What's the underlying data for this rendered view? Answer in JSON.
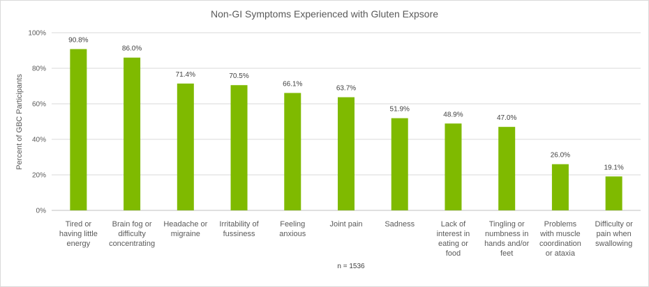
{
  "chart_data": {
    "type": "bar",
    "title": "Non-GI Symptoms  Experienced with Gluten Expsore",
    "ylabel": "Percent of GBC Participants",
    "xlabel": "",
    "ylim": [
      0,
      100
    ],
    "yticks": [
      "0%",
      "20%",
      "40%",
      "60%",
      "80%",
      "100%"
    ],
    "grid": true,
    "bar_color": "#7fba00",
    "categories": [
      [
        "Tired or",
        "having little",
        "energy"
      ],
      [
        "Brain fog or",
        "difficulty",
        "concentrating"
      ],
      [
        "Headache or",
        "migraine"
      ],
      [
        "Irritability of",
        "fussiness"
      ],
      [
        "Feeling",
        "anxious"
      ],
      [
        "Joint pain"
      ],
      [
        "Sadness"
      ],
      [
        "Lack of",
        "interest in",
        "eating or",
        "food"
      ],
      [
        "Tingling or",
        "numbness in",
        "hands and/or",
        "feet"
      ],
      [
        "Problems",
        "with muscle",
        "coordination",
        "or ataxia"
      ],
      [
        "Difficulty or",
        "pain when",
        "swallowing"
      ]
    ],
    "values": [
      90.8,
      86.0,
      71.4,
      70.5,
      66.1,
      63.7,
      51.9,
      48.9,
      47.0,
      26.0,
      19.1
    ],
    "data_labels": [
      "90.8%",
      "86.0%",
      "71.4%",
      "70.5%",
      "66.1%",
      "63.7%",
      "51.9%",
      "48.9%",
      "47.0%",
      "26.0%",
      "19.1%"
    ],
    "note": "n = 1536"
  }
}
